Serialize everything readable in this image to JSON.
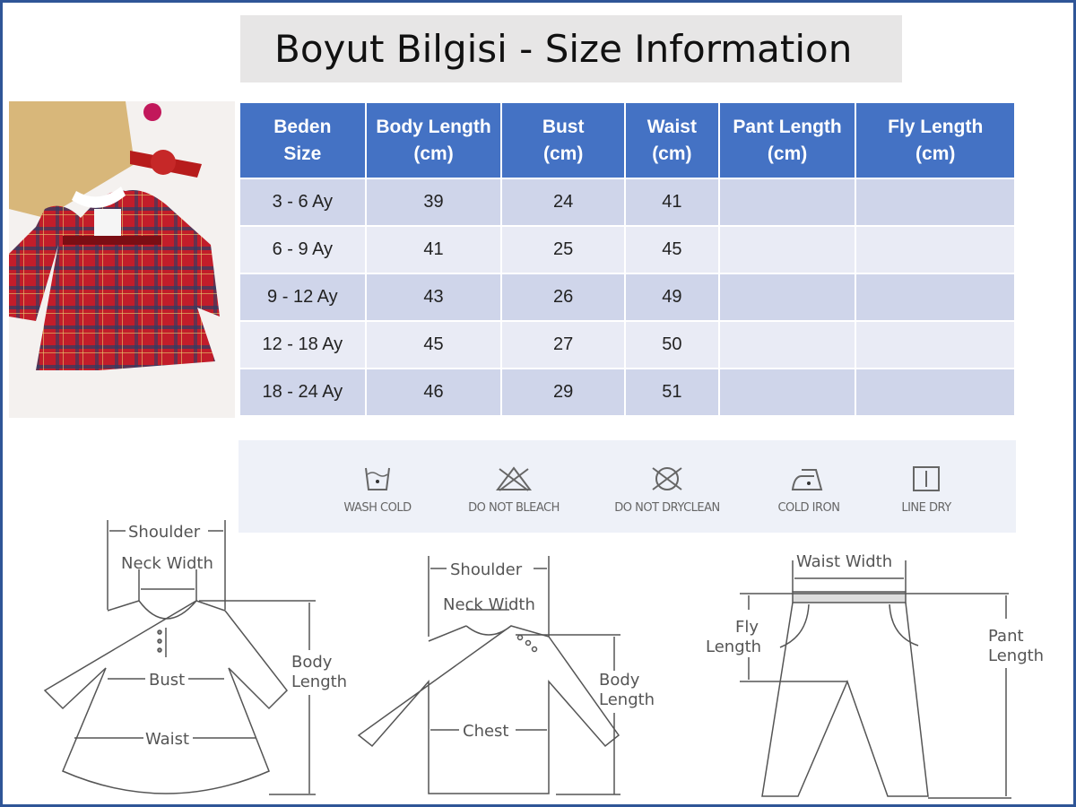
{
  "title": "Boyut Bilgisi - Size Information",
  "table": {
    "headers": [
      [
        "Beden",
        "Size"
      ],
      [
        "Body Length",
        "(cm)"
      ],
      [
        "Bust",
        "(cm)"
      ],
      [
        "Waist",
        "(cm)"
      ],
      [
        "Pant Length",
        "(cm)"
      ],
      [
        "Fly Length",
        "(cm)"
      ]
    ],
    "rows": [
      [
        "3 - 6 Ay",
        "39",
        "24",
        "41",
        "",
        ""
      ],
      [
        "6 - 9 Ay",
        "41",
        "25",
        "45",
        "",
        ""
      ],
      [
        "9 - 12 Ay",
        "43",
        "26",
        "49",
        "",
        ""
      ],
      [
        "12 - 18 Ay",
        "45",
        "27",
        "50",
        "",
        ""
      ],
      [
        "18 - 24 Ay",
        "46",
        "29",
        "51",
        "",
        ""
      ]
    ]
  },
  "care": [
    {
      "icon": "wash-cold-icon",
      "label": "WASH COLD"
    },
    {
      "icon": "do-not-bleach-icon",
      "label": "DO NOT BLEACH"
    },
    {
      "icon": "do-not-dryclean-icon",
      "label": "DO NOT DRYCLEAN"
    },
    {
      "icon": "cold-iron-icon",
      "label": "COLD IRON"
    },
    {
      "icon": "line-dry-icon",
      "label": "LINE DRY"
    }
  ],
  "diagrams": {
    "dress": {
      "shoulder": "Shoulder",
      "neck": "Neck Width",
      "bust": "Bust",
      "waist": "Waist",
      "body1": "Body",
      "body2": "Length"
    },
    "shirt": {
      "shoulder": "Shoulder",
      "neck": "Neck Width",
      "chest": "Chest",
      "body1": "Body",
      "body2": "Length"
    },
    "pants": {
      "waist": "Waist Width",
      "fly1": "Fly",
      "fly2": "Length",
      "pant1": "Pant",
      "pant2": "Length"
    }
  },
  "colors": {
    "header": "#4472c4",
    "row_odd": "#cfd5ea",
    "row_even": "#e9ebf5",
    "frame": "#2f5597"
  }
}
